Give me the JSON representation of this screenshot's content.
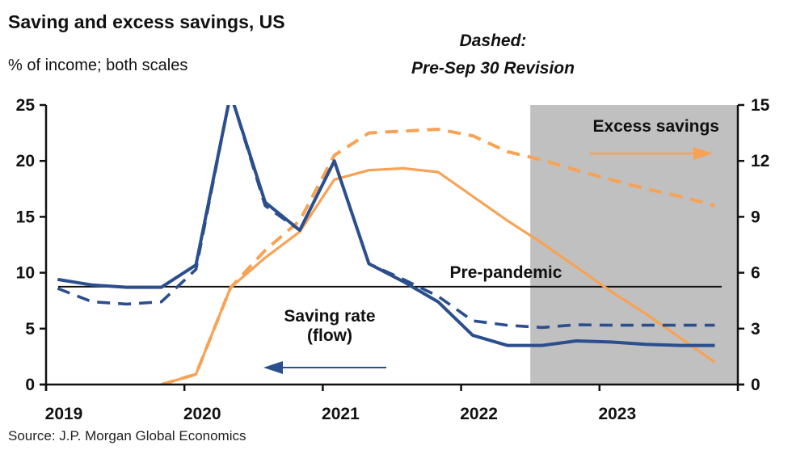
{
  "title": "Saving and excess savings, US",
  "subtitle": "% of income; both scales",
  "note": {
    "line1": "Dashed:",
    "line2": "Pre-Sep 30 Revision"
  },
  "source": "Source: J.P. Morgan Global Economics",
  "colors": {
    "saving_rate": "#2b4e8c",
    "excess_savings": "#f7a254",
    "pre_pandemic": "#111111",
    "shading": "#c0c0c0"
  },
  "chart_data": {
    "type": "line",
    "title": "Saving and excess savings, US",
    "ylabel": "% of income; both scales",
    "x_range": [
      "2019-01",
      "2024-01"
    ],
    "x_ticks": [
      "2019",
      "2020",
      "2021",
      "2022",
      "2023"
    ],
    "y_left": {
      "range": [
        0,
        25
      ],
      "ticks": [
        "0",
        "5",
        "10",
        "15",
        "20",
        "25"
      ]
    },
    "y_right": {
      "range": [
        0,
        15
      ],
      "ticks": [
        "0",
        "3",
        "6",
        "9",
        "12",
        "15"
      ]
    },
    "shaded_region": {
      "from": "2022-07",
      "to": "2024-01"
    },
    "grid": false,
    "x": [
      "2019-02",
      "2019-05",
      "2019-08",
      "2019-11",
      "2020-02",
      "2020-05",
      "2020-08",
      "2020-11",
      "2021-02",
      "2021-05",
      "2021-08",
      "2021-11",
      "2022-02",
      "2022-05",
      "2022-08",
      "2022-11",
      "2023-02",
      "2023-05",
      "2023-08",
      "2023-11"
    ],
    "series": [
      {
        "name": "Saving rate (flow)",
        "axis": "left",
        "style": "solid",
        "values": [
          9.4,
          8.9,
          8.7,
          8.7,
          10.7,
          26,
          16.3,
          13.8,
          20,
          10.8,
          9.2,
          7.4,
          4.4,
          3.5,
          3.5,
          3.9,
          3.8,
          3.6,
          3.5,
          3.5
        ]
      },
      {
        "axis": "left",
        "style": "dashed",
        "values": [
          8.6,
          7.4,
          7.2,
          7.4,
          10.3,
          26,
          16,
          13.8,
          20,
          10.8,
          9.4,
          7.9,
          5.7,
          5.3,
          5.1,
          5.35,
          5.3,
          5.3,
          5.3,
          5.3
        ]
      },
      {
        "name": "Excess savings",
        "axis": "right",
        "style": "solid",
        "values": [
          null,
          null,
          null,
          0,
          0.55,
          5.2,
          6.8,
          8.2,
          11.0,
          11.5,
          11.6,
          11.4,
          10.1,
          8.8,
          7.6,
          6.3,
          5.0,
          3.8,
          2.5,
          1.2
        ]
      },
      {
        "axis": "right",
        "style": "dashed",
        "values": [
          null,
          null,
          null,
          0,
          0.55,
          5.2,
          7.2,
          8.8,
          12.3,
          13.5,
          13.6,
          13.7,
          13.35,
          12.5,
          12.05,
          11.5,
          11.0,
          10.5,
          10.1,
          9.6
        ]
      }
    ],
    "reference_line": {
      "label": "Pre-pandemic",
      "axis": "left",
      "value": 8.75
    },
    "annotations": {
      "saving_rate_line1": "Saving rate",
      "saving_rate_line2": "(flow)",
      "excess_savings": "Excess savings",
      "pre_pandemic": "Pre-pandemic"
    }
  }
}
